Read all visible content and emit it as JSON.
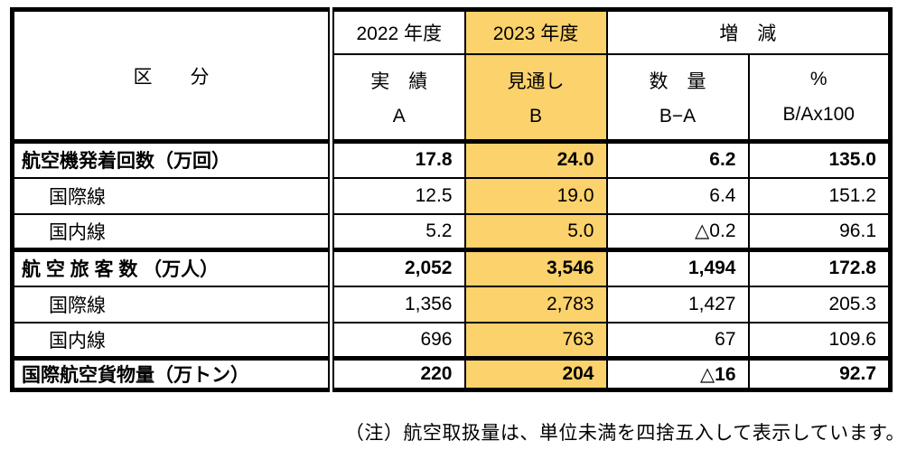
{
  "colors": {
    "highlight_2023_column": "#FBD26B",
    "border": "#000000",
    "text": "#000000"
  },
  "table": {
    "header": {
      "category": "区　　分",
      "col_2022": {
        "year": "2022 年度",
        "label": "実　績",
        "letter": "A"
      },
      "col_2023": {
        "year": "2023 年度",
        "label": "見通し",
        "letter": "B"
      },
      "change": {
        "title": "増　減",
        "qty": {
          "label": "数　量",
          "letter": "B−A"
        },
        "pct": {
          "label": "%",
          "letter": "B/Ax100"
        }
      }
    },
    "rows": [
      {
        "label": "航空機発着回数（万回）",
        "a": "17.8",
        "b": "24.0",
        "diff": "6.2",
        "pct": "135.0"
      },
      {
        "label": "国際線",
        "a": "12.5",
        "b": "19.0",
        "diff": "6.4",
        "pct": "151.2"
      },
      {
        "label": "国内線",
        "a": "5.2",
        "b": "5.0",
        "diff": "△0.2",
        "pct": "96.1"
      },
      {
        "label": "航 空 旅 客 数 （万人）",
        "a": "2,052",
        "b": "3,546",
        "diff": "1,494",
        "pct": "172.8"
      },
      {
        "label": "国際線",
        "a": "1,356",
        "b": "2,783",
        "diff": "1,427",
        "pct": "205.3"
      },
      {
        "label": "国内線",
        "a": "696",
        "b": "763",
        "diff": "67",
        "pct": "109.6"
      },
      {
        "label": "国際航空貨物量（万トン）",
        "a": "220",
        "b": "204",
        "diff": "△16",
        "pct": "92.7"
      }
    ],
    "note": "（注）航空取扱量は、単位未満を四捨五入して表示しています。"
  }
}
